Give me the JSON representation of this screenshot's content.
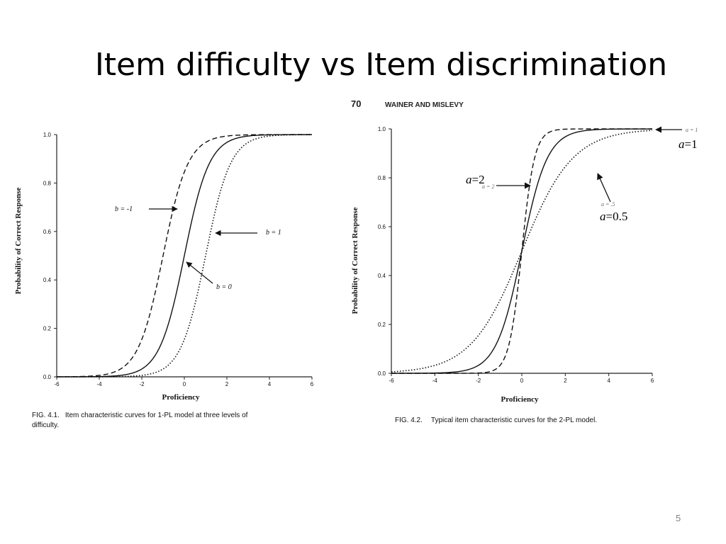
{
  "slide": {
    "title": "Item difficulty vs Item discrimination",
    "page_number": "5"
  },
  "book_header": {
    "page": "70",
    "authors": "WAINER AND MISLEVY"
  },
  "chart_data": [
    {
      "type": "line",
      "figure": "FIG. 4.1.",
      "caption_line1": "Item characteristic curves for 1-PL model at three levels of",
      "caption_line2": "difficulty.",
      "xlabel": "Proficiency",
      "ylabel": "Probability of Correct Response",
      "xlim": [
        -6,
        6
      ],
      "ylim": [
        0,
        1
      ],
      "x_ticks": [
        "-6",
        "-4",
        "-2",
        "0",
        "2",
        "4",
        "6"
      ],
      "y_ticks": [
        "0.0",
        "0.2",
        "0.4",
        "0.6",
        "0.8",
        "1.0"
      ],
      "series": [
        {
          "name": "b = -1",
          "a": 1,
          "b": -1,
          "style": "dashed",
          "label_text": "b = -1"
        },
        {
          "name": "b = 0",
          "a": 1,
          "b": 0,
          "style": "solid",
          "label_text": "b = 0"
        },
        {
          "name": "b = 1",
          "a": 1,
          "b": 1,
          "style": "dotted",
          "label_text": "b = 1"
        }
      ]
    },
    {
      "type": "line",
      "figure": "FIG. 4.2.",
      "caption": "Typical item characteristic curves for the 2-PL model.",
      "xlabel": "Proficiency",
      "ylabel": "Probability of Correct Response",
      "xlim": [
        -6,
        6
      ],
      "ylim": [
        0,
        1
      ],
      "x_ticks": [
        "-6",
        "-4",
        "-2",
        "0",
        "2",
        "4",
        "6"
      ],
      "y_ticks": [
        "0.0",
        "0.2",
        "0.4",
        "0.6",
        "0.8",
        "1.0"
      ],
      "series": [
        {
          "name": "a = 2",
          "a": 2,
          "b": 0,
          "style": "dashed",
          "printed_label": "a = 2",
          "overlay_italic": "a",
          "overlay_rest": "=2"
        },
        {
          "name": "a = 1",
          "a": 1,
          "b": 0,
          "style": "solid",
          "printed_label": "a = 1",
          "overlay_italic": "a",
          "overlay_rest": "=1"
        },
        {
          "name": "a = .5",
          "a": 0.5,
          "b": 0,
          "style": "dotted",
          "printed_label": "a = .5",
          "overlay_italic": "a",
          "overlay_rest": "=0.5"
        }
      ]
    }
  ]
}
